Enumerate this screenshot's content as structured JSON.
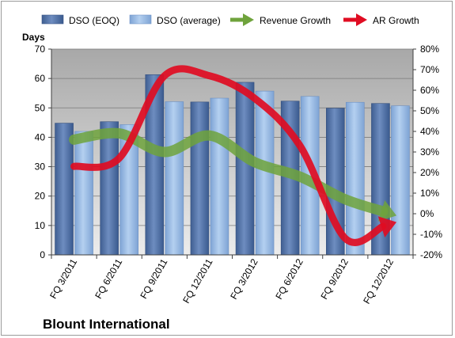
{
  "chart_data": {
    "type": "bar",
    "categories": [
      "FQ 3/2011",
      "FQ 6/2011",
      "FQ 9/2011",
      "FQ 12/2011",
      "FQ 3/2012",
      "FQ 6/2012",
      "FQ 9/2012",
      "FQ 12/2012"
    ],
    "series": [
      {
        "name": "DSO (EOQ)",
        "type": "bar",
        "axis": "left",
        "color": "#5a79ad",
        "values": [
          44.8,
          45.3,
          61.3,
          52.0,
          58.7,
          52.3,
          49.9,
          51.5
        ]
      },
      {
        "name": "DSO (average)",
        "type": "bar",
        "axis": "left",
        "color": "#94b8e3",
        "values": [
          42.0,
          44.3,
          52.1,
          53.3,
          55.7,
          53.9,
          51.9,
          50.7
        ]
      },
      {
        "name": "Revenue Growth",
        "type": "line-arrow",
        "axis": "right",
        "color": "#6fa33c",
        "values": [
          0.36,
          0.39,
          0.3,
          0.38,
          0.25,
          0.18,
          0.07,
          0.0
        ]
      },
      {
        "name": "AR Growth",
        "type": "line-arrow",
        "axis": "right",
        "color": "#e00c22",
        "values": [
          0.23,
          0.27,
          0.67,
          0.67,
          0.56,
          0.33,
          -0.12,
          -0.05
        ]
      }
    ],
    "ylabel": "Days",
    "ylim": [
      0,
      70
    ],
    "yticks": [
      0,
      10,
      20,
      30,
      40,
      50,
      60,
      70
    ],
    "y2lim": [
      -0.2,
      0.8
    ],
    "y2ticks": [
      "-20%",
      "-10%",
      "0%",
      "10%",
      "20%",
      "30%",
      "40%",
      "50%",
      "60%",
      "70%",
      "80%"
    ],
    "legend_position": "top",
    "footer": "Blount International"
  }
}
